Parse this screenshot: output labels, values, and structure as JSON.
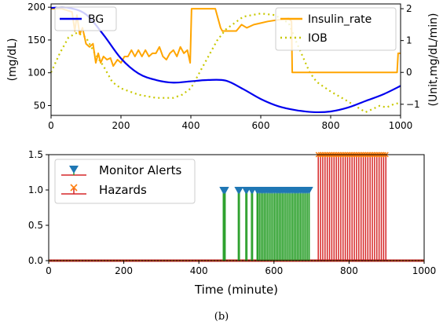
{
  "caption": "(b)",
  "chart_data": [
    {
      "type": "line",
      "x": [
        0,
        50,
        100,
        150,
        200,
        250,
        300,
        350,
        400,
        450,
        500,
        550,
        600,
        650,
        700,
        750,
        800,
        850,
        900,
        950,
        1000
      ],
      "xlim": [
        0,
        1000
      ],
      "xticks": [
        "0",
        "200",
        "400",
        "600",
        "800",
        "1000"
      ],
      "ylim": [
        35,
        205
      ],
      "yticks": [
        "50",
        "100",
        "150",
        "200"
      ],
      "ylabel": "(mg/dL)",
      "y2lim": [
        -1.35,
        2.15
      ],
      "y2ticks": [
        "−1",
        "0",
        "1",
        "2"
      ],
      "y2label": "(Unit,mg/dL/min)",
      "grid": false,
      "series": [
        {
          "name": "BG",
          "axis": "left",
          "color": "#0000ee",
          "style": "solid",
          "values": [
            199,
            199,
            189,
            158,
            122,
            99,
            89,
            85,
            87,
            89,
            88,
            75,
            60,
            49,
            43,
            40,
            41,
            47,
            57,
            67,
            80
          ]
        },
        {
          "name": "Insulin_rate",
          "axis": "right",
          "color": "#ffa500",
          "style": "solid",
          "points": [
            [
              0,
              2.0
            ],
            [
              30,
              2.0
            ],
            [
              60,
              1.9
            ],
            [
              68,
              1.3
            ],
            [
              74,
              1.8
            ],
            [
              82,
              1.2
            ],
            [
              90,
              1.4
            ],
            [
              100,
              0.9
            ],
            [
              110,
              0.8
            ],
            [
              120,
              0.9
            ],
            [
              128,
              0.3
            ],
            [
              135,
              0.6
            ],
            [
              142,
              0.3
            ],
            [
              150,
              0.5
            ],
            [
              160,
              0.4
            ],
            [
              170,
              0.45
            ],
            [
              178,
              0.2
            ],
            [
              190,
              0.4
            ],
            [
              200,
              0.3
            ],
            [
              210,
              0.5
            ],
            [
              220,
              0.5
            ],
            [
              230,
              0.7
            ],
            [
              240,
              0.5
            ],
            [
              250,
              0.7
            ],
            [
              260,
              0.5
            ],
            [
              270,
              0.7
            ],
            [
              280,
              0.5
            ],
            [
              290,
              0.6
            ],
            [
              300,
              0.6
            ],
            [
              310,
              0.8
            ],
            [
              320,
              0.5
            ],
            [
              330,
              0.4
            ],
            [
              340,
              0.6
            ],
            [
              350,
              0.7
            ],
            [
              360,
              0.5
            ],
            [
              370,
              0.8
            ],
            [
              380,
              0.6
            ],
            [
              390,
              0.7
            ],
            [
              398,
              0.3
            ],
            [
              402,
              2.0
            ],
            [
              470,
              2.0
            ],
            [
              485,
              1.4
            ],
            [
              490,
              1.3
            ],
            [
              530,
              1.3
            ],
            [
              545,
              1.5
            ],
            [
              560,
              1.4
            ],
            [
              580,
              1.5
            ],
            [
              600,
              1.55
            ],
            [
              620,
              1.6
            ],
            [
              650,
              1.65
            ],
            [
              680,
              1.7
            ],
            [
              688,
              1.6
            ],
            [
              690,
              0.0
            ],
            [
              780,
              0.0
            ],
            [
              840,
              0.0
            ],
            [
              900,
              0.0
            ],
            [
              990,
              0.0
            ],
            [
              993,
              0.6
            ],
            [
              1000,
              0.6
            ]
          ]
        },
        {
          "name": "IOB",
          "axis": "right",
          "color": "#c8c800",
          "style": "dotted",
          "points": [
            [
              0,
              0.0
            ],
            [
              25,
              0.6
            ],
            [
              50,
              1.1
            ],
            [
              75,
              1.25
            ],
            [
              100,
              1.1
            ],
            [
              125,
              0.6
            ],
            [
              150,
              0.2
            ],
            [
              175,
              -0.3
            ],
            [
              200,
              -0.5
            ],
            [
              250,
              -0.7
            ],
            [
              300,
              -0.8
            ],
            [
              350,
              -0.8
            ],
            [
              375,
              -0.7
            ],
            [
              400,
              -0.5
            ],
            [
              425,
              0.0
            ],
            [
              450,
              0.5
            ],
            [
              475,
              1.0
            ],
            [
              500,
              1.35
            ],
            [
              550,
              1.75
            ],
            [
              600,
              1.85
            ],
            [
              640,
              1.8
            ],
            [
              680,
              1.55
            ],
            [
              700,
              1.0
            ],
            [
              720,
              0.5
            ],
            [
              740,
              0.0
            ],
            [
              760,
              -0.3
            ],
            [
              800,
              -0.6
            ],
            [
              840,
              -0.85
            ],
            [
              870,
              -1.05
            ],
            [
              900,
              -1.25
            ],
            [
              920,
              -1.15
            ],
            [
              940,
              -1.05
            ],
            [
              960,
              -1.1
            ],
            [
              980,
              -1.0
            ],
            [
              1000,
              -0.95
            ]
          ]
        }
      ]
    },
    {
      "type": "scatter",
      "xlabel": "Time (minute)",
      "xlim": [
        0,
        1000
      ],
      "xticks": [
        "0",
        "200",
        "400",
        "600",
        "800",
        "1000"
      ],
      "ylim": [
        0,
        1.5
      ],
      "yticks": [
        "0.0",
        "0.5",
        "1.0",
        "1.5"
      ],
      "grid": false,
      "series": [
        {
          "name": "Monitor Alerts",
          "color": "#1f77b4",
          "stem_color": "#2ca02c",
          "height": 1.0,
          "x": [
            465,
            467,
            470,
            505,
            508,
            525,
            528,
            540,
            543,
            555,
            558,
            562,
            566,
            570,
            574,
            578,
            582,
            586,
            590,
            594,
            598,
            602,
            606,
            610,
            614,
            618,
            622,
            626,
            630,
            634,
            638,
            642,
            646,
            650,
            654,
            658,
            662,
            666,
            670,
            674,
            678,
            682,
            686,
            690,
            694
          ]
        },
        {
          "name": "Hazards",
          "color": "#d62728",
          "marker_color": "#ff7f0e",
          "height": 1.5,
          "x": [
            718,
            724,
            730,
            736,
            742,
            748,
            754,
            760,
            766,
            772,
            778,
            784,
            790,
            796,
            802,
            808,
            814,
            820,
            826,
            832,
            838,
            844,
            850,
            856,
            862,
            868,
            874,
            880,
            886,
            892,
            898
          ]
        }
      ]
    }
  ]
}
